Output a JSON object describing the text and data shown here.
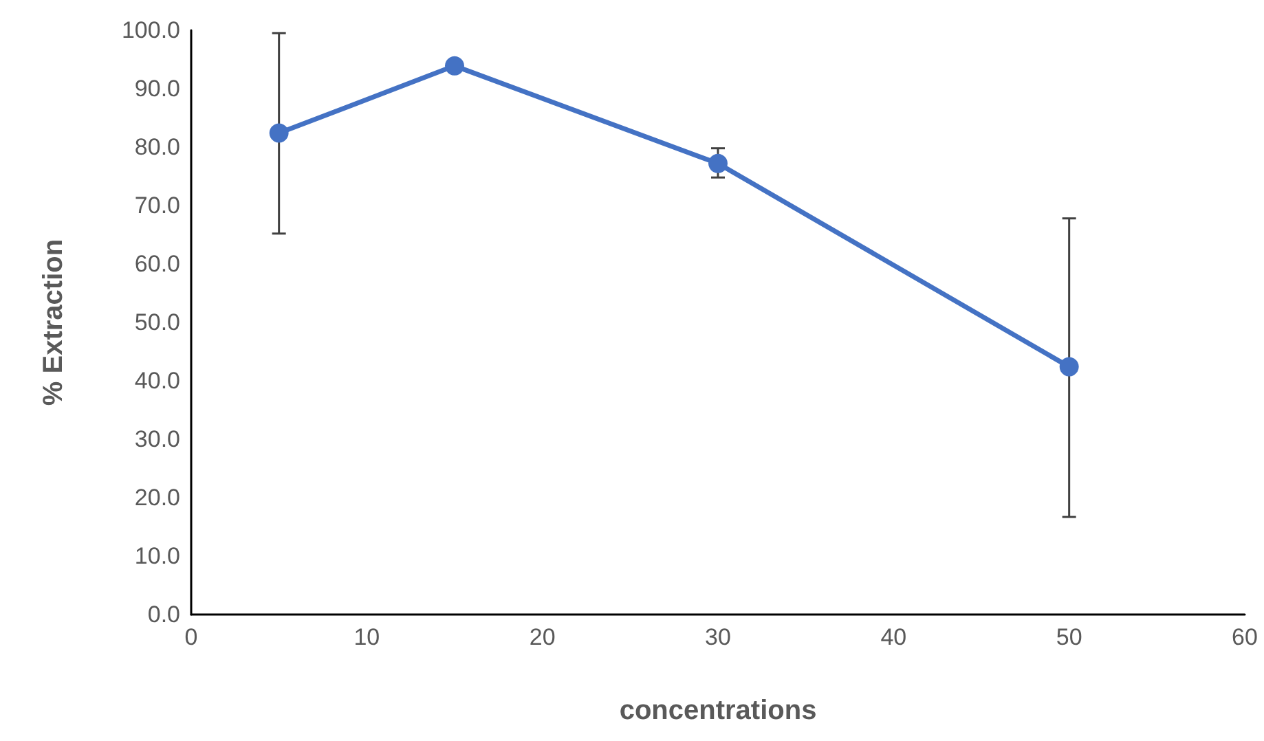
{
  "chart_data": {
    "type": "line",
    "xlabel": "concentrations",
    "ylabel": "% Extraction",
    "x": [
      5,
      15,
      30,
      50
    ],
    "series": [
      {
        "color": "#4472c4",
        "values": [
          82.4,
          93.9,
          77.2,
          42.4
        ],
        "errors": [
          [
            65.2,
            99.5
          ],
          null,
          [
            74.8,
            79.8
          ],
          [
            16.7,
            67.8
          ]
        ]
      }
    ],
    "xlim": [
      0,
      60
    ],
    "xticks": [
      0,
      10,
      20,
      30,
      40,
      50,
      60
    ],
    "ylim": [
      0,
      100
    ],
    "yticks": [
      {
        "value": 0,
        "label": "0.0"
      },
      {
        "value": 10,
        "label": "10.0"
      },
      {
        "value": 20,
        "label": "20.0"
      },
      {
        "value": 30,
        "label": "30.0"
      },
      {
        "value": 40,
        "label": "40.0"
      },
      {
        "value": 50,
        "label": "50.0"
      },
      {
        "value": 60,
        "label": "60.0"
      },
      {
        "value": 70,
        "label": "70.0"
      },
      {
        "value": 80,
        "label": "80.0"
      },
      {
        "value": 90,
        "label": "90.0"
      },
      {
        "value": 100,
        "label": "100.0"
      }
    ],
    "grid": false,
    "marker": "circle",
    "line_style": "solid"
  }
}
